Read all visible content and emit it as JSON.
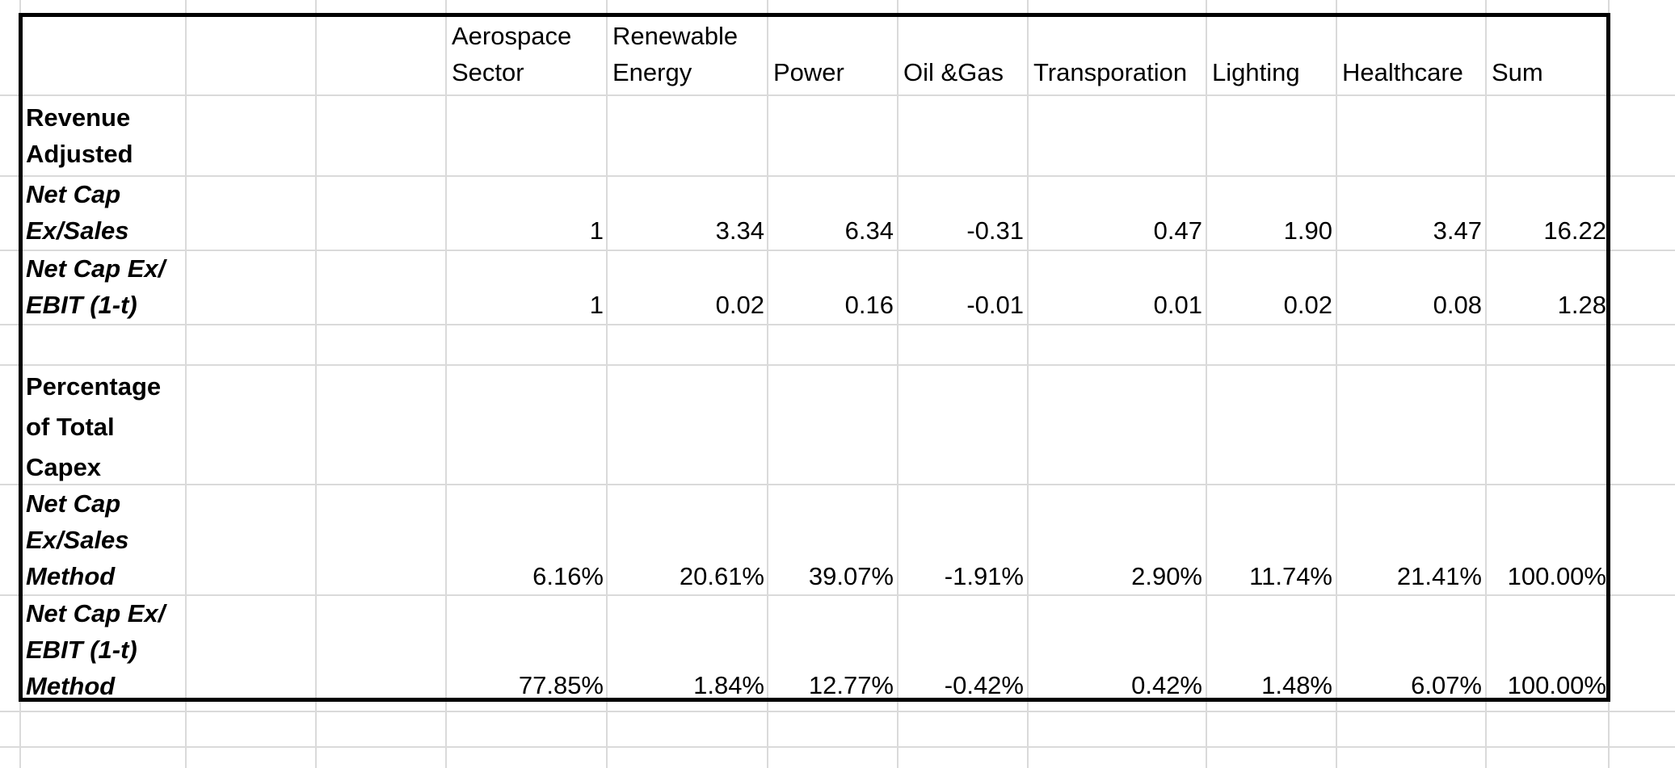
{
  "table": {
    "columns": [
      {
        "line1": "Aerospace",
        "line2": "Sector"
      },
      {
        "line1": "Renewable",
        "line2": "Energy"
      },
      {
        "line1": "",
        "line2": "Power"
      },
      {
        "line1": "",
        "line2": "Oil &Gas"
      },
      {
        "line1": "",
        "line2": "Transporation"
      },
      {
        "line1": "",
        "line2": "Lighting"
      },
      {
        "line1": "",
        "line2": "Healthcare"
      },
      {
        "line1": "",
        "line2": "Sum"
      }
    ],
    "section1": {
      "label": [
        "Revenue",
        "Adjusted"
      ],
      "rows": [
        {
          "label": [
            "Net Cap",
            "Ex/Sales"
          ],
          "values": [
            "1",
            "3.34",
            "6.34",
            "-0.31",
            "0.47",
            "1.90",
            "3.47",
            "16.22"
          ]
        },
        {
          "label": [
            "Net Cap Ex/",
            "EBIT (1-t)"
          ],
          "values": [
            "1",
            "0.02",
            "0.16",
            "-0.01",
            "0.01",
            "0.02",
            "0.08",
            "1.28"
          ]
        }
      ]
    },
    "section2": {
      "label": [
        "Percentage",
        "of Total",
        "Capex"
      ],
      "rows": [
        {
          "label": [
            "Net Cap",
            "Ex/Sales",
            "Method"
          ],
          "values": [
            "6.16%",
            "20.61%",
            "39.07%",
            "-1.91%",
            "2.90%",
            "11.74%",
            "21.41%",
            "100.00%"
          ]
        },
        {
          "label": [
            "Net Cap Ex/",
            "EBIT (1-t)",
            "Method"
          ],
          "values": [
            "77.85%",
            "1.84%",
            "12.77%",
            "-0.42%",
            "0.42%",
            "1.48%",
            "6.07%",
            "100.00%"
          ]
        }
      ]
    }
  }
}
